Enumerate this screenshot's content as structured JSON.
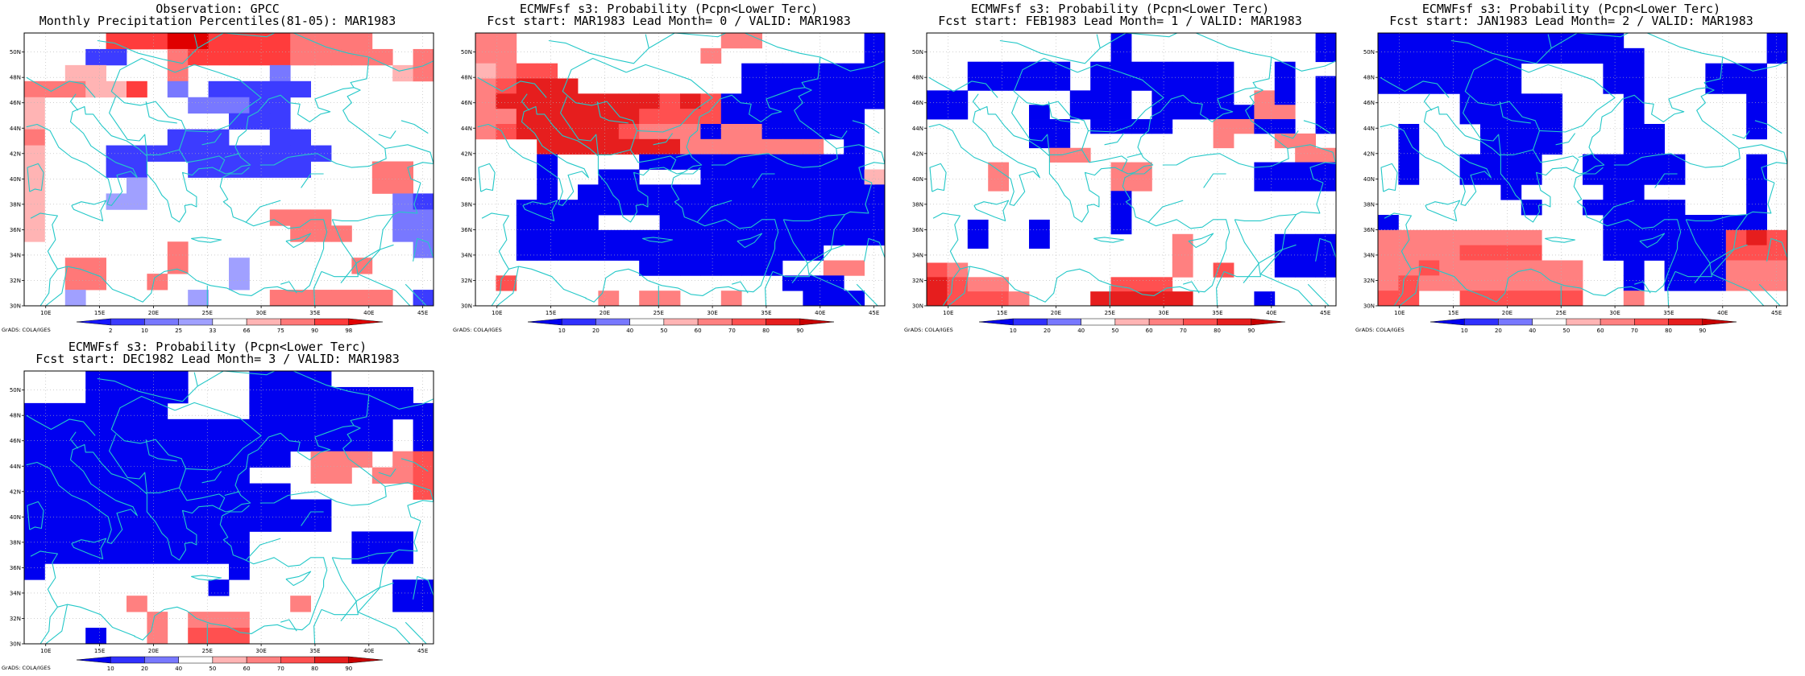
{
  "palette": {
    "observation": {
      "labels": [
        "2",
        "10",
        "25",
        "33",
        "66",
        "75",
        "90",
        "98"
      ],
      "colors": [
        "#1616ff",
        "#3c3cff",
        "#7878ff",
        "#a0a0ff",
        "#ffffff",
        "#ffb4b4",
        "#ff7878",
        "#ff3c3c",
        "#e00000"
      ]
    },
    "forecast": {
      "labels": [
        "10",
        "20",
        "40",
        "50",
        "60",
        "70",
        "80",
        "90"
      ],
      "colors": [
        "#0000f0",
        "#3030ff",
        "#7878ff",
        "#ffffff",
        "#ffb4b4",
        "#ff8080",
        "#ff5050",
        "#e61e1e",
        "#c80000"
      ]
    },
    "coast": "#24c8c8"
  },
  "map_extent": {
    "lon": [
      8,
      46
    ],
    "lat": [
      30,
      51.5
    ],
    "lon_ticks": [
      "10E",
      "15E",
      "20E",
      "25E",
      "30E",
      "35E",
      "40E",
      "45E"
    ],
    "lat_ticks": [
      "30N",
      "32N",
      "34N",
      "36N",
      "38N",
      "40N",
      "42N",
      "44N",
      "46N",
      "48N",
      "50N"
    ]
  },
  "credit": "GrADS: COLA/IGES",
  "panels": [
    {
      "title1": "Observation: GPCC",
      "title2": "Monthly Precipitation Percentiles(81-05): MAR1983",
      "palette": "observation",
      "rows": [
        "....7778877776666...",
        "...11..67777766666.6",
        "..55...6....2.....56",
        "666557.2.11111......",
        "5.......22211.......",
        "5.........111.......",
        "6......111..11......",
        "5...11111111111.....",
        "5...11..111111...66.",
        "5....3...........66.",
        "5...33............21",
        "5...........666...22",
        "5............666..22",
        ".......6...........2",
        "..66...6..3.....6...",
        "..66..6...3.........",
        "..3.....3...666666.1"
      ]
    },
    {
      "title1": "ECMWFsf s3: Probability (Pcpn<Lower Terc)",
      "title2": "Fcst start: MAR1983  Lead Month= 0 / VALID: MAR1983",
      "palette": "forecast",
      "rows": [
        "55..........55.....0",
        "55.........5.......0",
        "4566.........0000000",
        "56777........0000000",
        "57777777767600000000",
        "5577777766660000000.",
        "5677777655505500000.",
        "...77777775555555.0.",
        "...0....00000000000.",
        "...0..00...000000004",
        "...0.000000000000000",
        "..000000000000000000",
        "..0000...00000000000",
        "..000000000000000000",
        "..000000000000000...",
        "........0000000..55.",
        ".6.............000..",
        "......5.55..5...000."
      ]
    },
    {
      "title1": "ECMWFsf s3: Probability (Pcpn<Lower Terc)",
      "title2": "Fcst start: FEB1983  Lead Month= 1 / VALID: MAR1983",
      "palette": "forecast",
      "rows": [
        ".........0.........0",
        ".........0.........0",
        "..00000.0000000..0..",
        "..00000.0000000..0.0",
        "00.....000.0000.50.0",
        "00...0.000.0000055.0",
        ".....00.0000..5500.0",
        ".....00.......5..55.",
        "......55..........55",
        "...5.....55.....0000",
        "...5.....55.....0000",
        ".........0..........",
        ".........0..........",
        "..0..0...0..........",
        "..0..0......5....000",
        "............5....000",
        "65..........5.6..000",
        "7655.....666........",
        "76665...77777...0..."
      ]
    },
    {
      "title1": "ECMWFsf s3: Probability (Pcpn<Lower Terc)",
      "title2": "Fcst start: JAN1983  Lead Month= 2 / VALID: MAR1983",
      "palette": "forecast",
      "rows": [
        "000000000000.......0",
        "0000000000000......0",
        "0000000....00...000.",
        "0000000....00...000.",
        "....00000...0.....0.",
        "....00000...0.....0.",
        ".0...0000...00....0.",
        ".0...0000...00......",
        ".0..0000..00000...0.",
        ".0..0000..00000...0.",
        "......0....00.....0.",
        ".......0..00000...0.",
        "0..........00000000.",
        "55555555...000000676",
        "55556666...000000666",
        "5565555555..0.000555",
        "5655555555..0.000555",
        "66..666666..5......."
      ]
    },
    {
      "title1": "ECMWFsf s3: Probability (Pcpn<Lower Terc)",
      "title2": "Fcst start: DEC1982  Lead Month= 3 / VALID: MAR1983",
      "palette": "forecast",
      "rows": [
        "...00000...0000.....",
        "...00000...00000000.",
        "0000000....000000000",
        "000000000000000000.0",
        "000000000000000000.0",
        "0000000000000.555.56",
        "00000000000...55.556",
        "0000000000000......6",
        "000000000000000.....",
        "000000000000000.....",
        "00000000000.....000.",
        "00000000000.....000.",
        "0.........0.........",
        ".........0........00",
        ".....5.......5....00",
        "......5.555.........",
        "...0..5.666........."
      ]
    }
  ]
}
